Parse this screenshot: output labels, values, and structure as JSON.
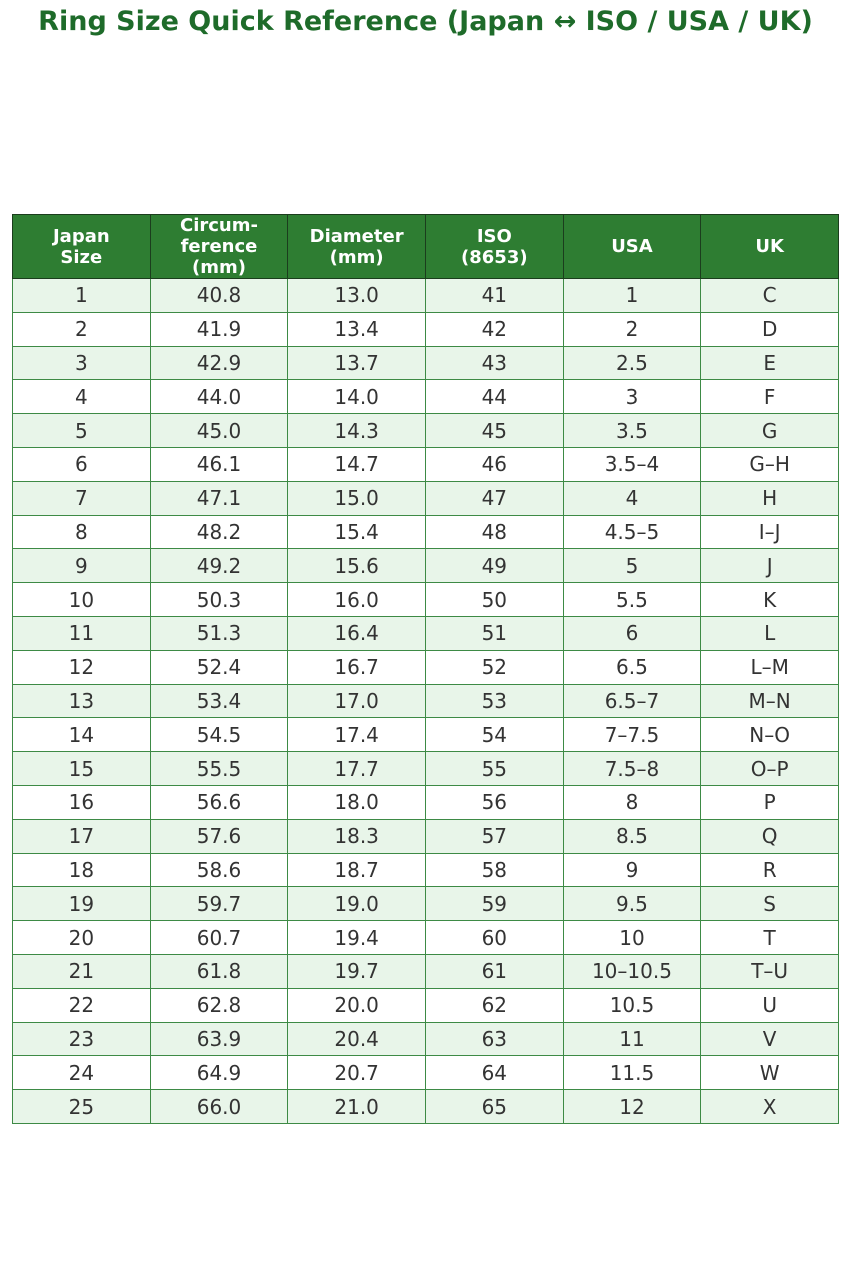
{
  "title": "Ring Size Quick Reference (Japan ↔ ISO / USA / UK)",
  "table": {
    "header": [
      [
        "Japan",
        "Size"
      ],
      [
        "Circum-",
        "ference",
        "(mm)"
      ],
      [
        "Diameter",
        "(mm)"
      ],
      [
        "ISO",
        "(8653)"
      ],
      [
        "USA"
      ],
      [
        "UK"
      ]
    ],
    "rows": [
      [
        "1",
        "40.8",
        "13.0",
        "41",
        "1",
        "C"
      ],
      [
        "2",
        "41.9",
        "13.4",
        "42",
        "2",
        "D"
      ],
      [
        "3",
        "42.9",
        "13.7",
        "43",
        "2.5",
        "E"
      ],
      [
        "4",
        "44.0",
        "14.0",
        "44",
        "3",
        "F"
      ],
      [
        "5",
        "45.0",
        "14.3",
        "45",
        "3.5",
        "G"
      ],
      [
        "6",
        "46.1",
        "14.7",
        "46",
        "3.5–4",
        "G–H"
      ],
      [
        "7",
        "47.1",
        "15.0",
        "47",
        "4",
        "H"
      ],
      [
        "8",
        "48.2",
        "15.4",
        "48",
        "4.5–5",
        "I–J"
      ],
      [
        "9",
        "49.2",
        "15.6",
        "49",
        "5",
        "J"
      ],
      [
        "10",
        "50.3",
        "16.0",
        "50",
        "5.5",
        "K"
      ],
      [
        "11",
        "51.3",
        "16.4",
        "51",
        "6",
        "L"
      ],
      [
        "12",
        "52.4",
        "16.7",
        "52",
        "6.5",
        "L–M"
      ],
      [
        "13",
        "53.4",
        "17.0",
        "53",
        "6.5–7",
        "M–N"
      ],
      [
        "14",
        "54.5",
        "17.4",
        "54",
        "7–7.5",
        "N–O"
      ],
      [
        "15",
        "55.5",
        "17.7",
        "55",
        "7.5–8",
        "O–P"
      ],
      [
        "16",
        "56.6",
        "18.0",
        "56",
        "8",
        "P"
      ],
      [
        "17",
        "57.6",
        "18.3",
        "57",
        "8.5",
        "Q"
      ],
      [
        "18",
        "58.6",
        "18.7",
        "58",
        "9",
        "R"
      ],
      [
        "19",
        "59.7",
        "19.0",
        "59",
        "9.5",
        "S"
      ],
      [
        "20",
        "60.7",
        "19.4",
        "60",
        "10",
        "T"
      ],
      [
        "21",
        "61.8",
        "19.7",
        "61",
        "10–10.5",
        "T–U"
      ],
      [
        "22",
        "62.8",
        "20.0",
        "62",
        "10.5",
        "U"
      ],
      [
        "23",
        "63.9",
        "20.4",
        "63",
        "11",
        "V"
      ],
      [
        "24",
        "64.9",
        "20.7",
        "64",
        "11.5",
        "W"
      ],
      [
        "25",
        "66.0",
        "21.0",
        "65",
        "12",
        "X"
      ]
    ]
  }
}
